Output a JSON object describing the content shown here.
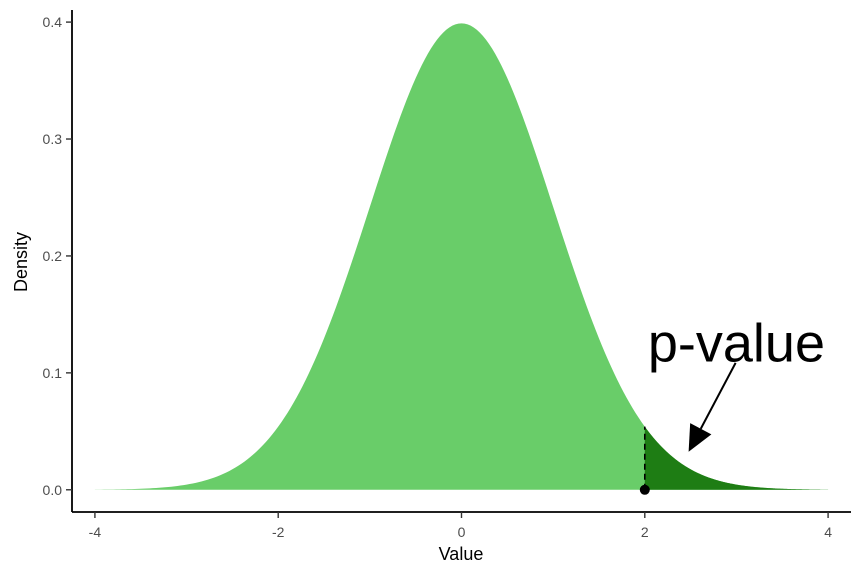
{
  "chart_data": {
    "type": "area",
    "title": "",
    "xlabel": "Value",
    "ylabel": "Density",
    "xlim": [
      -4.25,
      4.25
    ],
    "ylim": [
      -0.019,
      0.4189
    ],
    "x_ticks": [
      -4,
      -2,
      0,
      2,
      4
    ],
    "x_tick_labels": [
      "-4",
      "-2",
      "0",
      "2",
      "4"
    ],
    "y_ticks": [
      0.0,
      0.1,
      0.2,
      0.3,
      0.4
    ],
    "y_tick_labels": [
      "0.0",
      "0.1",
      "0.2",
      "0.3",
      "0.4"
    ],
    "series": [
      {
        "distribution": "standard normal density",
        "x_range": [
          -4,
          4
        ],
        "color": "#69CD69"
      },
      {
        "distribution": "upper tail region",
        "x_range": [
          2,
          4
        ],
        "color": "#1E7D14"
      }
    ],
    "cutoff_line": {
      "x": 2,
      "y_top": 0.054,
      "style": "dashed"
    },
    "cutoff_point": {
      "x": 2,
      "y": 0
    },
    "annotation": {
      "text": "p-value",
      "text_at": [
        3.0,
        0.125
      ],
      "arrow_from": [
        2.5,
        0.1
      ],
      "arrow_to": [
        2.5,
        0.03
      ]
    },
    "grid": false
  },
  "colors": {
    "axis": "#000000",
    "tick_label": "#4d4d4d"
  }
}
